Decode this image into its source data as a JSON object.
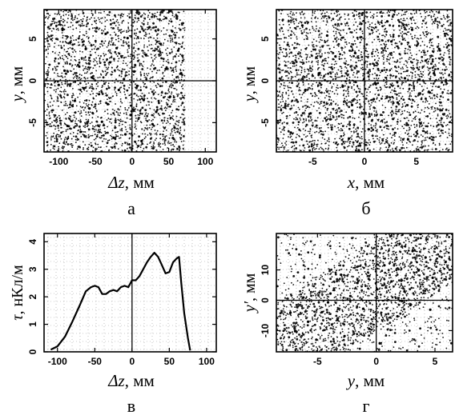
{
  "figure": {
    "panels": [
      {
        "caption": "а"
      },
      {
        "caption": "б"
      },
      {
        "caption": "в"
      },
      {
        "caption": "г"
      }
    ]
  },
  "chart_data": [
    {
      "id": "a",
      "type": "scatter",
      "caption": "а",
      "title": "",
      "xlabel_sym": "Δz",
      "xlabel_unit": ", мм",
      "ylabel_sym": "y",
      "ylabel_unit": ", мм",
      "xlim": [
        -120,
        115
      ],
      "ylim": [
        -8.5,
        8.5
      ],
      "xticks": [
        -100,
        -50,
        0,
        50,
        100
      ],
      "xticklabels": [
        "-100",
        "-50",
        "0",
        "50",
        "100"
      ],
      "yticks": [
        -5,
        0,
        5
      ],
      "yticklabels": [
        "-5",
        "0",
        "5"
      ],
      "grid": true,
      "points": [
        [
          -92,
          1.2
        ],
        [
          -78,
          -2.4
        ],
        [
          -63,
          3.8
        ],
        [
          -55,
          0.4
        ],
        [
          -41,
          -4.9
        ],
        [
          -30,
          2.2
        ],
        [
          -18,
          -1.1
        ],
        [
          -6,
          5.1
        ],
        [
          7,
          -0.6
        ],
        [
          19,
          3.1
        ],
        [
          33,
          -3.7
        ],
        [
          46,
          1.4
        ],
        [
          58,
          -5.6
        ],
        [
          67,
          0.9
        ],
        [
          -100,
          -0.5
        ],
        [
          -84,
          4.6
        ],
        [
          -70,
          -6.1
        ],
        [
          -48,
          6.3
        ],
        [
          -25,
          -6.8
        ],
        [
          -11,
          0.2
        ],
        [
          24,
          6.4
        ],
        [
          52,
          -1.9
        ],
        [
          -58,
          -3.3
        ],
        [
          -36,
          5.6
        ],
        [
          -2,
          -4.1
        ],
        [
          13,
          -7.2
        ],
        [
          39,
          4.4
        ],
        [
          63,
          3.6
        ],
        [
          -88,
          -5.4
        ],
        [
          -72,
          1.7
        ],
        [
          -45,
          -1.6
        ],
        [
          -21,
          3.9
        ],
        [
          3,
          1.1
        ],
        [
          28,
          -5.2
        ],
        [
          55,
          5.9
        ],
        [
          -95,
          6.2
        ],
        [
          -66,
          -0.9
        ],
        [
          -33,
          -2.8
        ],
        [
          -9,
          -6.4
        ],
        [
          16,
          -2.3
        ]
      ]
    },
    {
      "id": "b",
      "type": "scatter",
      "caption": "б",
      "title": "",
      "xlabel_sym": "x",
      "xlabel_unit": ", мм",
      "ylabel_sym": "y",
      "ylabel_unit": ", мм",
      "xlim": [
        -8.5,
        8.5
      ],
      "ylim": [
        -8.5,
        8.5
      ],
      "xticks": [
        -5,
        0,
        5
      ],
      "xticklabels": [
        "-5",
        "0",
        "5"
      ],
      "yticks": [
        -5,
        0,
        5
      ],
      "yticklabels": [
        "-5",
        "0",
        "5"
      ],
      "grid": true,
      "points": [
        [
          -6.8,
          2.1
        ],
        [
          -5.2,
          -3.9
        ],
        [
          -3.6,
          5.4
        ],
        [
          -2.1,
          -0.7
        ],
        [
          -0.9,
          3.3
        ],
        [
          0.4,
          -5.8
        ],
        [
          1.7,
          1.2
        ],
        [
          3.2,
          -2.6
        ],
        [
          4.6,
          6.1
        ],
        [
          6.3,
          -1.4
        ],
        [
          -7.1,
          -6.2
        ],
        [
          -4.4,
          0.8
        ],
        [
          -1.5,
          -6.9
        ],
        [
          2.6,
          4.7
        ],
        [
          5.4,
          -5.1
        ],
        [
          7.2,
          3.8
        ],
        [
          -6.0,
          6.6
        ],
        [
          -2.8,
          2.9
        ],
        [
          0.9,
          -2.2
        ],
        [
          3.9,
          0.3
        ],
        [
          -5.7,
          -1.1
        ],
        [
          -0.3,
          6.8
        ],
        [
          1.1,
          -0.4
        ],
        [
          6.7,
          0.9
        ],
        [
          -3.3,
          -4.6
        ],
        [
          4.2,
          -7.0
        ],
        [
          -7.4,
          4.3
        ],
        [
          2.2,
          7.1
        ],
        [
          -1.2,
          -2.9
        ],
        [
          5.9,
          2.4
        ]
      ]
    },
    {
      "id": "c",
      "type": "line",
      "caption": "в",
      "title": "",
      "xlabel_sym": "Δz",
      "xlabel_unit": ", мм",
      "ylabel_sym": "τ",
      "ylabel_unit": ", нКл/м",
      "xlim": [
        -118,
        113
      ],
      "ylim": [
        0,
        4.3
      ],
      "xticks": [
        -100,
        -50,
        0,
        50,
        100
      ],
      "xticklabels": [
        "-100",
        "-50",
        "0",
        "50",
        "100"
      ],
      "yticks": [
        0,
        1,
        2,
        3,
        4
      ],
      "yticklabels": [
        "0",
        "1",
        "2",
        "3",
        "4"
      ],
      "grid": true,
      "x": [
        -109,
        -100,
        -90,
        -80,
        -70,
        -62,
        -55,
        -50,
        -45,
        -40,
        -35,
        -30,
        -25,
        -20,
        -15,
        -10,
        -5,
        0,
        5,
        10,
        15,
        20,
        25,
        30,
        35,
        40,
        45,
        50,
        55,
        60,
        63,
        66,
        70,
        75,
        78
      ],
      "values": [
        0.08,
        0.2,
        0.55,
        1.1,
        1.7,
        2.2,
        2.35,
        2.4,
        2.35,
        2.1,
        2.1,
        2.2,
        2.25,
        2.2,
        2.35,
        2.4,
        2.35,
        2.6,
        2.6,
        2.75,
        3.0,
        3.25,
        3.45,
        3.6,
        3.45,
        3.15,
        2.85,
        2.9,
        3.25,
        3.4,
        3.45,
        2.5,
        1.4,
        0.5,
        0.05
      ]
    },
    {
      "id": "d",
      "type": "scatter",
      "caption": "г",
      "title": "",
      "xlabel_sym": "y",
      "xlabel_unit": ", мм",
      "ylabel_sym": "y′",
      "ylabel_unit": ", мм",
      "xlim": [
        -8.5,
        6.5
      ],
      "ylim": [
        -17,
        22
      ],
      "xticks": [
        -5,
        0,
        5
      ],
      "xticklabels": [
        "-5",
        "0",
        "5"
      ],
      "yticks": [
        -10,
        0,
        10
      ],
      "yticklabels": [
        "-10",
        "0",
        "10"
      ],
      "grid": true,
      "points": [
        [
          -6.9,
          -10.2
        ],
        [
          -5.8,
          -7.1
        ],
        [
          -4.6,
          -3.9
        ],
        [
          -3.3,
          -6.5
        ],
        [
          -2.2,
          1.4
        ],
        [
          -1.1,
          -2.8
        ],
        [
          0.1,
          3.6
        ],
        [
          1.3,
          6.2
        ],
        [
          2.4,
          2.9
        ],
        [
          3.6,
          9.8
        ],
        [
          4.8,
          7.4
        ],
        [
          5.9,
          12.6
        ],
        [
          -7.3,
          -4.1
        ],
        [
          -5.1,
          -13.0
        ],
        [
          -3.9,
          2.2
        ],
        [
          -0.6,
          -9.4
        ],
        [
          0.7,
          11.5
        ],
        [
          2.9,
          -1.6
        ],
        [
          4.2,
          14.1
        ],
        [
          5.3,
          4.8
        ],
        [
          -6.2,
          0.9
        ],
        [
          -2.7,
          -11.8
        ],
        [
          -1.6,
          5.7
        ],
        [
          1.8,
          -5.3
        ],
        [
          3.1,
          16.2
        ],
        [
          -4.1,
          -0.7
        ],
        [
          0.3,
          -14.2
        ],
        [
          2.0,
          18.6
        ],
        [
          -3.0,
          8.4
        ],
        [
          4.6,
          -3.1
        ]
      ]
    }
  ]
}
